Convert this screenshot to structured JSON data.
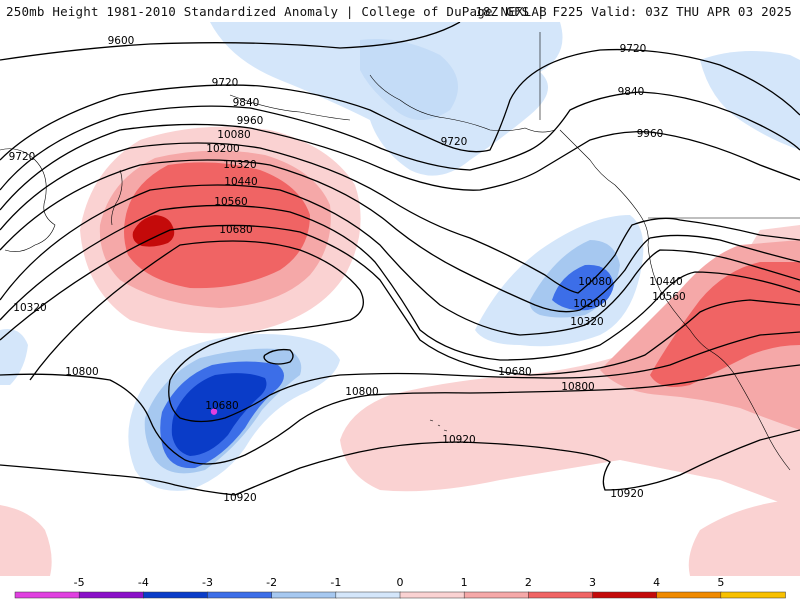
{
  "header": {
    "title_left": "250mb Height 1981-2010 Standardized Anomaly | College of DuPage NEXLAB",
    "title_right": "18Z GFS | F225 Valid: 03Z THU APR 03 2025"
  },
  "colors": {
    "neg5": "#e040e0",
    "neg4": "#8a10c8",
    "neg3": "#0a3cc8",
    "neg2": "#3c6ee8",
    "neg1": "#a6c8f0",
    "neg0": "#d4e6fa",
    "pos0": "#fad2d2",
    "pos1": "#f5a8a8",
    "pos2": "#f06464",
    "pos3": "#c40a0a",
    "pos4": "#f08a00",
    "pos5": "#f8c000",
    "contour": "#000000"
  },
  "contour_labels": [
    {
      "id": "c9600",
      "text": "9600"
    },
    {
      "id": "c9720a",
      "text": "9720"
    },
    {
      "id": "c9720b",
      "text": "9720"
    },
    {
      "id": "c9720c",
      "text": "9720"
    },
    {
      "id": "c9720d",
      "text": "9720"
    },
    {
      "id": "c9840a",
      "text": "9840"
    },
    {
      "id": "c9840b",
      "text": "9840"
    },
    {
      "id": "c9960a",
      "text": "9960"
    },
    {
      "id": "c9960b",
      "text": "9960"
    },
    {
      "id": "c10080a",
      "text": "10080"
    },
    {
      "id": "c10080b",
      "text": "10080"
    },
    {
      "id": "c10200a",
      "text": "10200"
    },
    {
      "id": "c10200b",
      "text": "10200"
    },
    {
      "id": "c10320a",
      "text": "10320"
    },
    {
      "id": "c10320b",
      "text": "10320"
    },
    {
      "id": "c10320c",
      "text": "10320"
    },
    {
      "id": "c10440a",
      "text": "10440"
    },
    {
      "id": "c10440b",
      "text": "10440"
    },
    {
      "id": "c10560a",
      "text": "10560"
    },
    {
      "id": "c10560b",
      "text": "10560"
    },
    {
      "id": "c10680a",
      "text": "10680"
    },
    {
      "id": "c10680b",
      "text": "10680"
    },
    {
      "id": "c10680c",
      "text": "10680"
    },
    {
      "id": "c10800a",
      "text": "10800"
    },
    {
      "id": "c10800b",
      "text": "10800"
    },
    {
      "id": "c10800c",
      "text": "10800"
    },
    {
      "id": "c10920a",
      "text": "10920"
    },
    {
      "id": "c10920b",
      "text": "10920"
    },
    {
      "id": "c10920c",
      "text": "10920"
    }
  ],
  "colorbar": {
    "ticks": [
      "-5",
      "-4",
      "-3",
      "-2",
      "-1",
      "0",
      "1",
      "2",
      "3",
      "4",
      "5"
    ]
  }
}
